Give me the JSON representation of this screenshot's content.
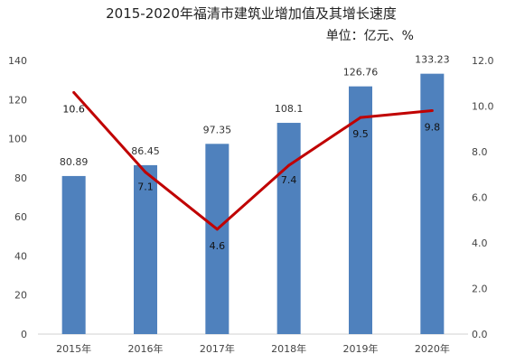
{
  "chart_data": {
    "type": "bar",
    "title": "2015-2020年福清市建筑业增加值及其增长速度",
    "subtitle": "单位：亿元、%",
    "categories": [
      "2015年",
      "2016年",
      "2017年",
      "2018年",
      "2019年",
      "2020年"
    ],
    "series": [
      {
        "type": "bar",
        "axis": "left",
        "values": [
          80.89,
          86.45,
          97.35,
          108.1,
          126.76,
          133.23
        ],
        "labels": [
          "80.89",
          "86.45",
          "97.35",
          "108.1",
          "126.76",
          "133.23"
        ]
      },
      {
        "type": "line",
        "axis": "right",
        "values": [
          10.6,
          7.1,
          4.6,
          7.4,
          9.5,
          9.8
        ],
        "labels": [
          "10.6",
          "7.1",
          "4.6",
          "7.4",
          "9.5",
          "9.8"
        ]
      }
    ],
    "left_axis": {
      "range": [
        0,
        140
      ],
      "ticks": [
        "0",
        "20",
        "40",
        "60",
        "80",
        "100",
        "120",
        "140"
      ]
    },
    "right_axis": {
      "range": [
        0,
        12
      ],
      "ticks": [
        "0.0",
        "2.0",
        "4.0",
        "6.0",
        "8.0",
        "10.0",
        "12.0"
      ]
    },
    "grid": false,
    "colors": {
      "bar": "#4f81bd",
      "line": "#c00000"
    }
  }
}
